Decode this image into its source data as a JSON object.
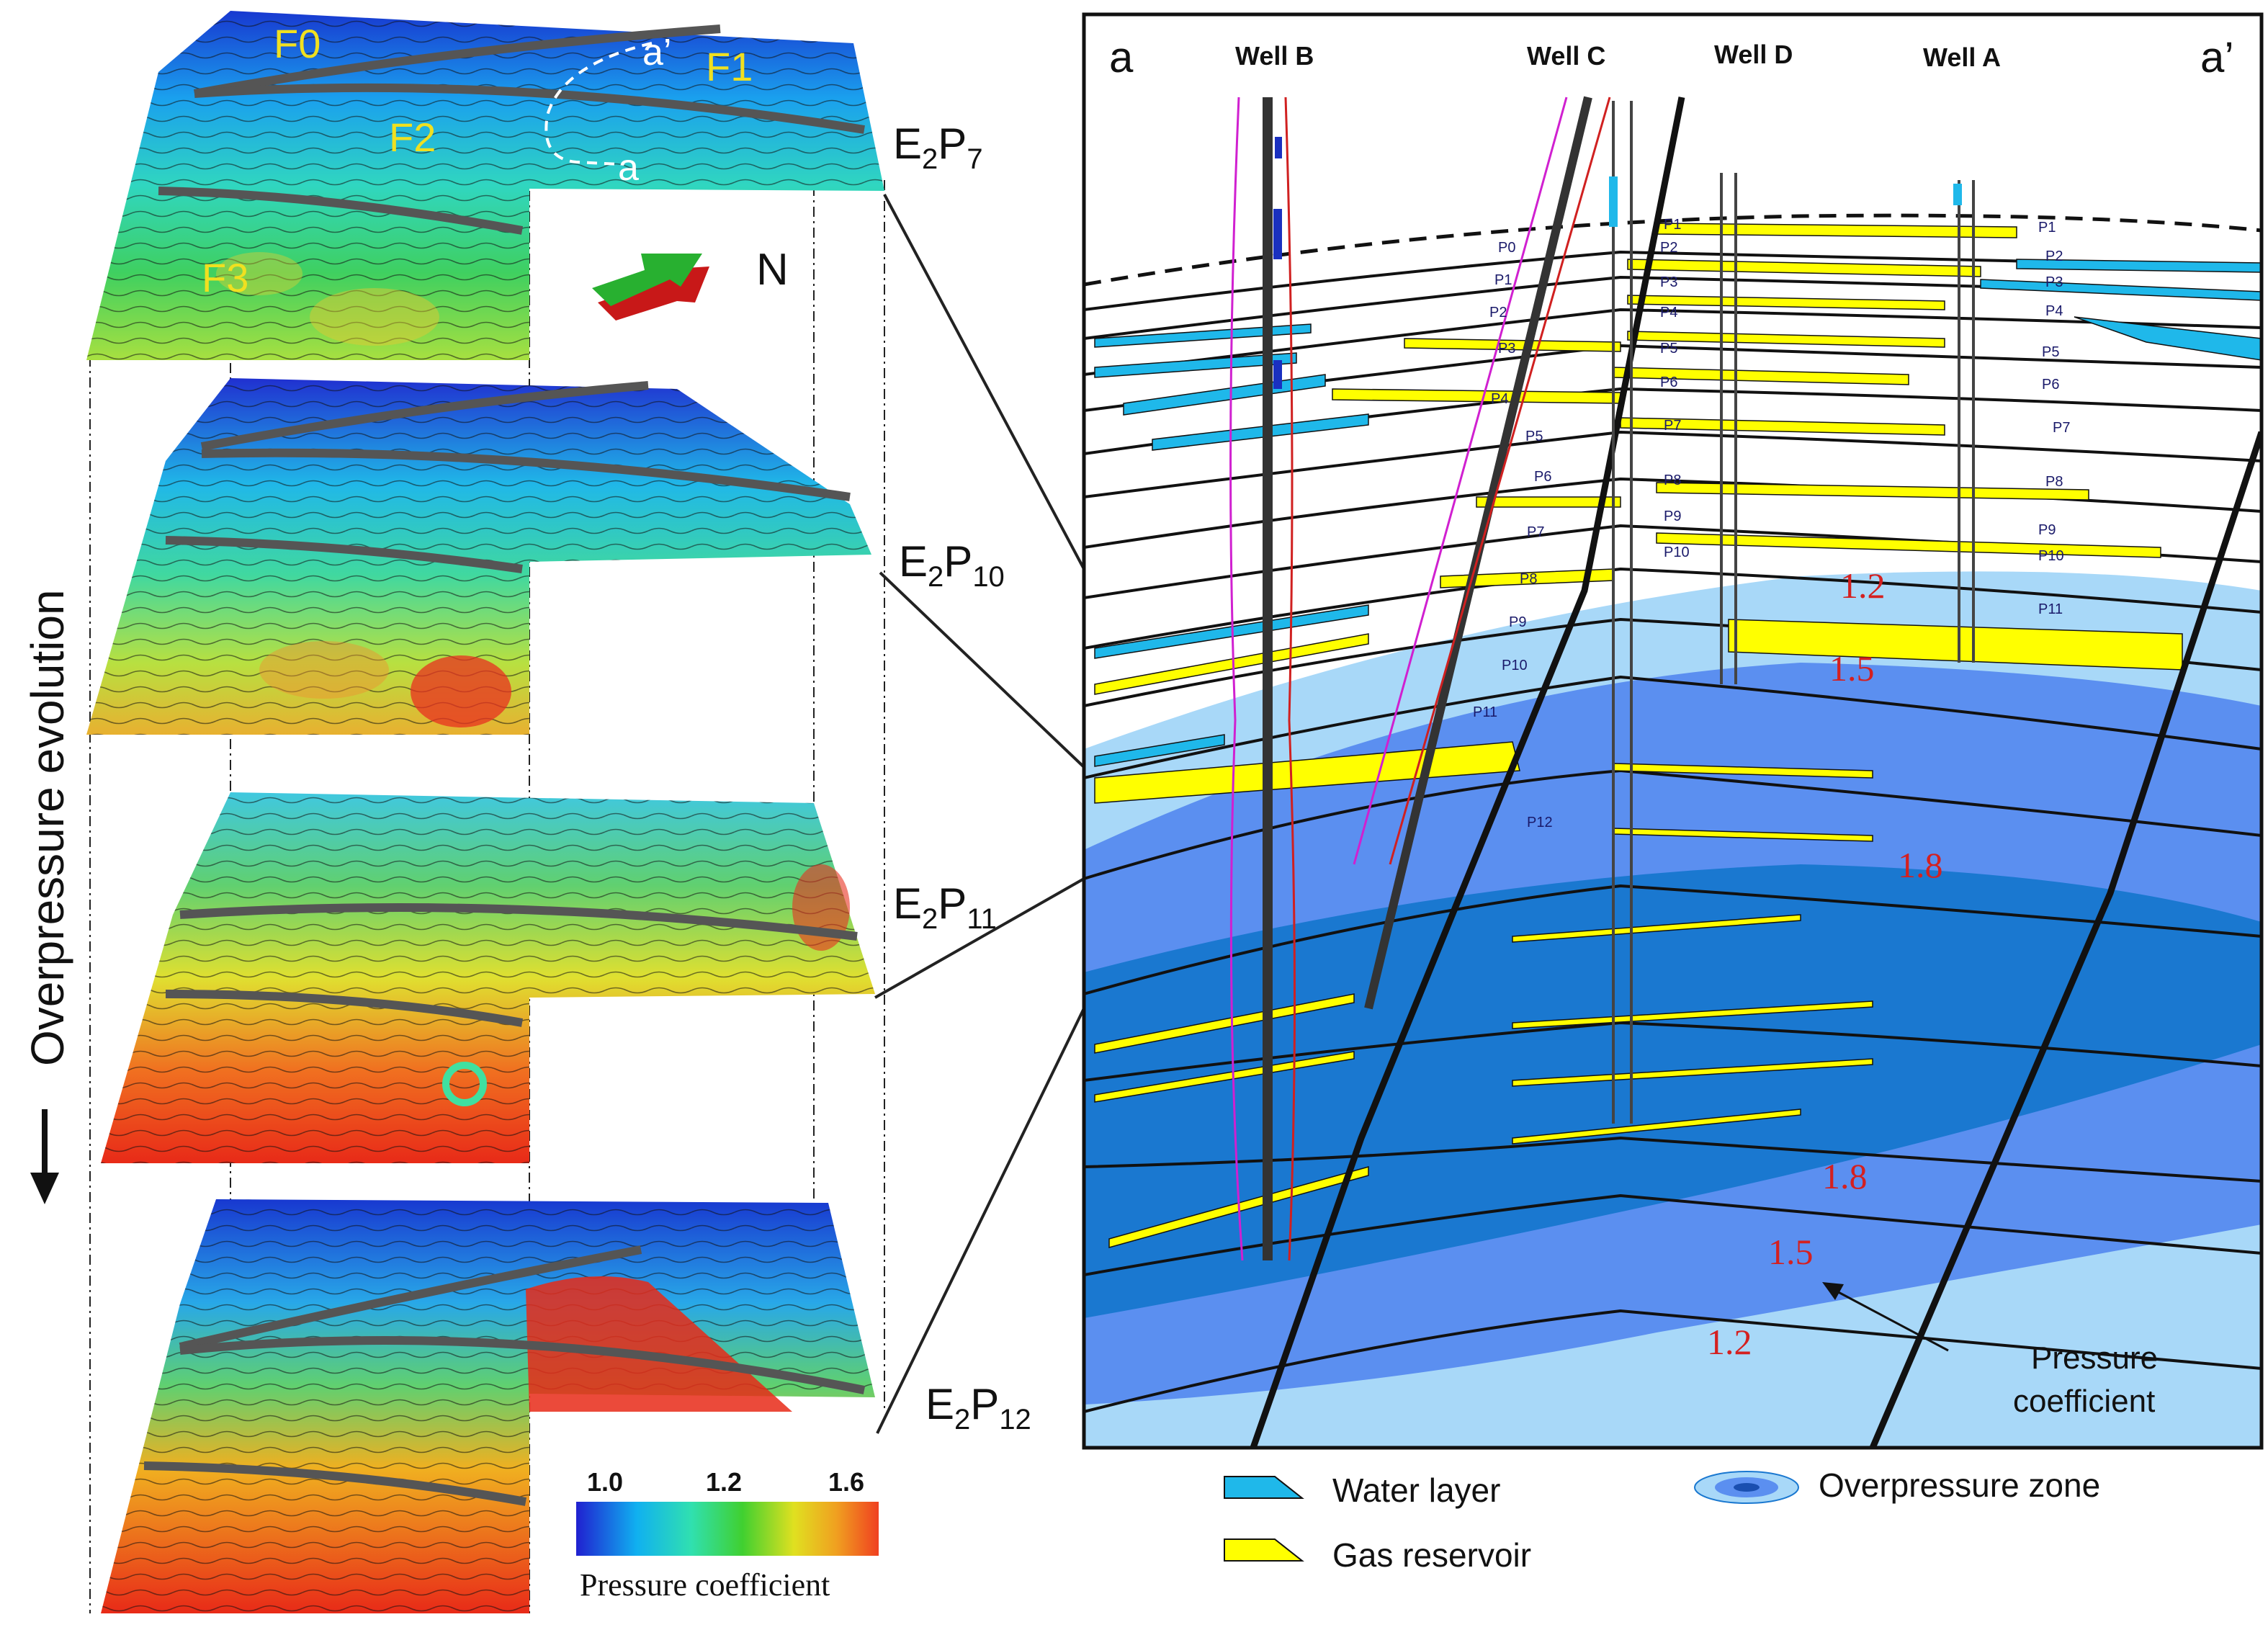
{
  "surface_maps": [
    {
      "label_base": "E",
      "label_sub1": "2",
      "label_mid": "P",
      "label_sub2": "7"
    },
    {
      "label_base": "E",
      "label_sub1": "2",
      "label_mid": "P",
      "label_sub2": "10"
    },
    {
      "label_base": "E",
      "label_sub1": "2",
      "label_mid": "P",
      "label_sub2": "11"
    },
    {
      "label_base": "E",
      "label_sub1": "2",
      "label_mid": "P",
      "label_sub2": "12"
    }
  ],
  "faults": [
    "F0",
    "F1",
    "F2",
    "F3"
  ],
  "section_ends_map": {
    "start": "a",
    "end": "a’"
  },
  "north_label": "N",
  "side_title": "Overpressure evolution",
  "colorbar": {
    "title": "Pressure coefficient",
    "ticks": [
      "1.0",
      "1.2",
      "1.6"
    ],
    "colors": [
      "#2020d0",
      "#10b0f0",
      "#30e0b0",
      "#40d030",
      "#e0e020",
      "#f0a020",
      "#f04020"
    ]
  },
  "cross_section": {
    "end_left": "a",
    "end_right": "a’",
    "wells": [
      "Well B",
      "Well C",
      "Well D",
      "Well A"
    ],
    "layers_well_B_side": [
      "P0",
      "P1",
      "P2",
      "P3",
      "P4",
      "P5",
      "P6",
      "P7",
      "P8",
      "P9",
      "P10",
      "P11",
      "P12"
    ],
    "layers_well_D": [
      "P1",
      "P2",
      "P3",
      "P4",
      "P5",
      "P6",
      "P7",
      "P8",
      "P9",
      "P10"
    ],
    "layers_well_A": [
      "P1",
      "P2",
      "P3",
      "P4",
      "P5",
      "P6",
      "P7",
      "P8",
      "P9",
      "P10",
      "P11"
    ],
    "pressure_values": [
      "1.2",
      "1.5",
      "1.8",
      "1.8",
      "1.5",
      "1.2"
    ],
    "annotation": {
      "line1": "Pressure",
      "line2": "coefficient"
    }
  },
  "legend": {
    "water": "Water layer",
    "gas": "Gas reservoir",
    "overpressure": "Overpressure zone"
  },
  "colors": {
    "water": "#1fb8ea",
    "gas": "#ffff00",
    "op_light": "#a8d8f8",
    "op_mid": "#5b8ff0",
    "op_deep": "#1a78d0",
    "red_text": "#d42020"
  }
}
